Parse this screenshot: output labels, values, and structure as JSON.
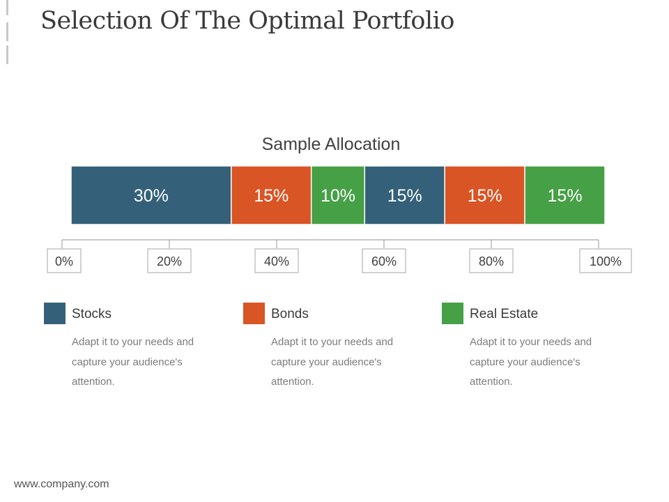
{
  "page": {
    "title": "Selection Of The Optimal Portfolio",
    "footer": "www.company.com"
  },
  "colors": {
    "stocks": "#346179",
    "bonds": "#d95525",
    "real_estate": "#46a046"
  },
  "chart_data": {
    "type": "bar",
    "orientation": "horizontal-stacked",
    "title": "Sample Allocation",
    "segments": [
      {
        "label": "30%",
        "value": 30,
        "category": "Stocks"
      },
      {
        "label": "15%",
        "value": 15,
        "category": "Bonds"
      },
      {
        "label": "10%",
        "value": 10,
        "category": "Real Estate"
      },
      {
        "label": "15%",
        "value": 15,
        "category": "Stocks"
      },
      {
        "label": "15%",
        "value": 15,
        "category": "Bonds"
      },
      {
        "label": "15%",
        "value": 15,
        "category": "Real Estate"
      }
    ],
    "axis": {
      "ticks": [
        0,
        20,
        40,
        60,
        80,
        100
      ],
      "tick_labels": [
        "0%",
        "20%",
        "40%",
        "60%",
        "80%",
        "100%"
      ],
      "range": [
        0,
        100
      ]
    },
    "legend": [
      {
        "name": "Stocks",
        "color_key": "stocks",
        "description": "Adapt it to your needs and capture your audience's attention."
      },
      {
        "name": "Bonds",
        "color_key": "bonds",
        "description": "Adapt it to your needs and capture your audience's attention."
      },
      {
        "name": "Real Estate",
        "color_key": "real_estate",
        "description": "Adapt it to your needs and capture your audience's attention."
      }
    ]
  }
}
